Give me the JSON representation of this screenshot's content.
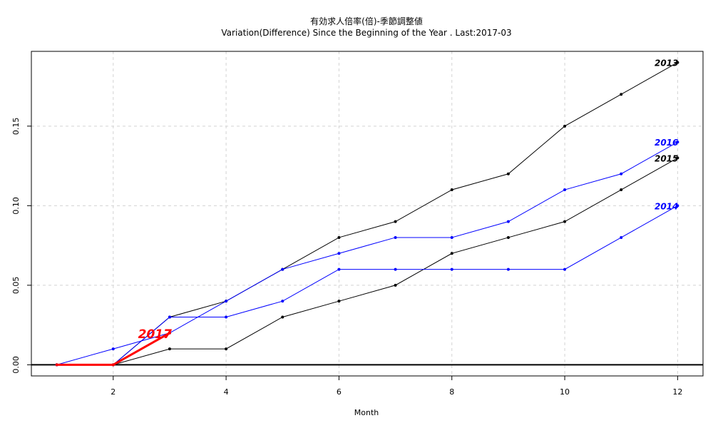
{
  "chart_data": {
    "type": "line",
    "title": "有効求人倍率(倍)-季節調整値",
    "subtitle": "Variation(Difference) Since the Beginning of the Year . Last:2017-03",
    "xlabel": "Month",
    "ylabel": "",
    "xlim": [
      0.55,
      12.45
    ],
    "ylim": [
      -0.007,
      0.197
    ],
    "xticks": [
      2,
      4,
      6,
      8,
      10,
      12
    ],
    "xtick_labels": [
      "2",
      "4",
      "6",
      "8",
      "10",
      "12"
    ],
    "yticks": [
      0.0,
      0.05,
      0.1,
      0.15
    ],
    "ytick_labels": [
      "0.00",
      "0.05",
      "0.10",
      "0.15"
    ],
    "grid": true,
    "zero_line": true,
    "series": [
      {
        "name": "2013",
        "color": "#000000",
        "x": [
          1,
          2,
          3,
          4,
          5,
          6,
          7,
          8,
          9,
          10,
          11,
          12
        ],
        "values": [
          0.0,
          0.0,
          0.03,
          0.04,
          0.06,
          0.08,
          0.09,
          0.11,
          0.12,
          0.15,
          0.17,
          0.19
        ]
      },
      {
        "name": "2015",
        "color": "#000000",
        "x": [
          1,
          2,
          3,
          4,
          5,
          6,
          7,
          8,
          9,
          10,
          11,
          12
        ],
        "values": [
          0.0,
          0.0,
          0.01,
          0.01,
          0.03,
          0.04,
          0.05,
          0.07,
          0.08,
          0.09,
          0.11,
          0.13
        ]
      },
      {
        "name": "2016",
        "color": "#0000ff",
        "x": [
          1,
          2,
          3,
          4,
          5,
          6,
          7,
          8,
          9,
          10,
          11,
          12
        ],
        "values": [
          0.0,
          0.01,
          0.02,
          0.04,
          0.06,
          0.07,
          0.08,
          0.08,
          0.09,
          0.11,
          0.12,
          0.14
        ]
      },
      {
        "name": "2014",
        "color": "#0000ff",
        "x": [
          1,
          2,
          3,
          4,
          5,
          6,
          7,
          8,
          9,
          10,
          11,
          12
        ],
        "values": [
          0.0,
          0.0,
          0.03,
          0.03,
          0.04,
          0.06,
          0.06,
          0.06,
          0.06,
          0.06,
          0.08,
          0.1
        ]
      },
      {
        "name": "2017",
        "color": "#ff0000",
        "highlight": true,
        "x": [
          1,
          2,
          3
        ],
        "values": [
          0.0,
          0.0,
          0.02
        ]
      }
    ]
  }
}
